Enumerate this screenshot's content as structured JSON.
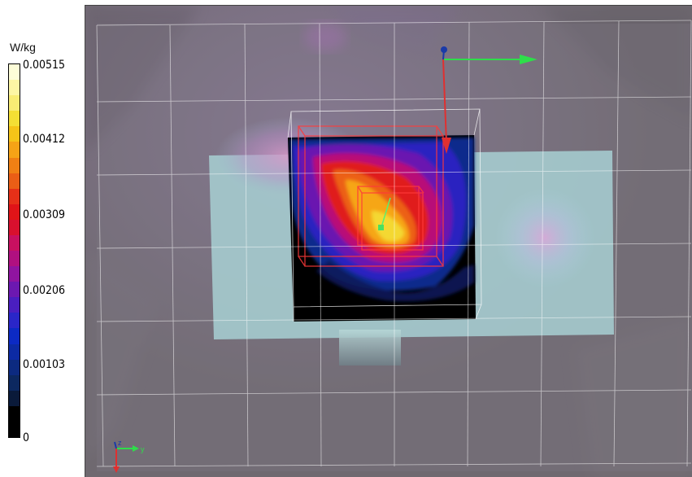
{
  "legend": {
    "unit": "W/kg",
    "ticks": [
      "0.00515",
      "0.00412",
      "0.00309",
      "0.00206",
      "0.00103",
      "0"
    ],
    "colors": [
      "#fdfdd8",
      "#fcf6a4",
      "#f8ec74",
      "#f4df34",
      "#f6c418",
      "#f6a316",
      "#f08014",
      "#ea5e16",
      "#e63018",
      "#e01418",
      "#d8102e",
      "#c81060",
      "#b01080",
      "#9014a0",
      "#6c18b0",
      "#4a1ec0",
      "#2a26c8",
      "#0c2ac4",
      "#0c2aa4",
      "#0c2a80",
      "#0c2860",
      "#0a1a3a",
      "#000000",
      "#000000"
    ]
  },
  "axes_main": {
    "z_color": "#1a3aa8",
    "y_color": "#2ede4a",
    "x_color": "#e03030"
  },
  "axes_mini": {
    "z": "z",
    "y": "y",
    "x": "x"
  }
}
